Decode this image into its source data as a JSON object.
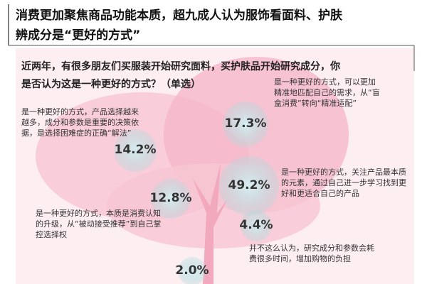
{
  "header": {
    "title_lines": [
      "消费更加聚焦商品功能本质，超九成人认为服饰看面料、护肤",
      "辨成分是“更好的方式”"
    ]
  },
  "question": {
    "lines": [
      "近两年，有很多朋友们买服装开始研究面料，买护肤品开始研究成分，你",
      "是否认为这是一种更好的方式？（单选）"
    ]
  },
  "items": [
    {
      "value": "17.3%",
      "text": "是一种更好的方式，可以更加精准地匹配自己的需求，从“盲盒消费”转向“精准适配”"
    },
    {
      "value": "14.2%",
      "text": "是一种更好的方式，产品选择越来越多，成分和参数是重要的决策依据，是选择困难症的正确“解法”"
    },
    {
      "value": "49.2%",
      "text": "是一种更好的方式，关注产品最本质的元素，通过自己进一步学习找到更好和更适合自己的产品"
    },
    {
      "value": "12.8%",
      "text": "是一种更好的方式，本质是消费认知的升级，从“被动接受推荐”到自己掌控选择权"
    },
    {
      "value": "4.4%",
      "text": "并不这么认为，研究成分和参数会耗费很多时间，增加购物的负担"
    },
    {
      "value": "2.0%",
      "text": null
    }
  ]
}
